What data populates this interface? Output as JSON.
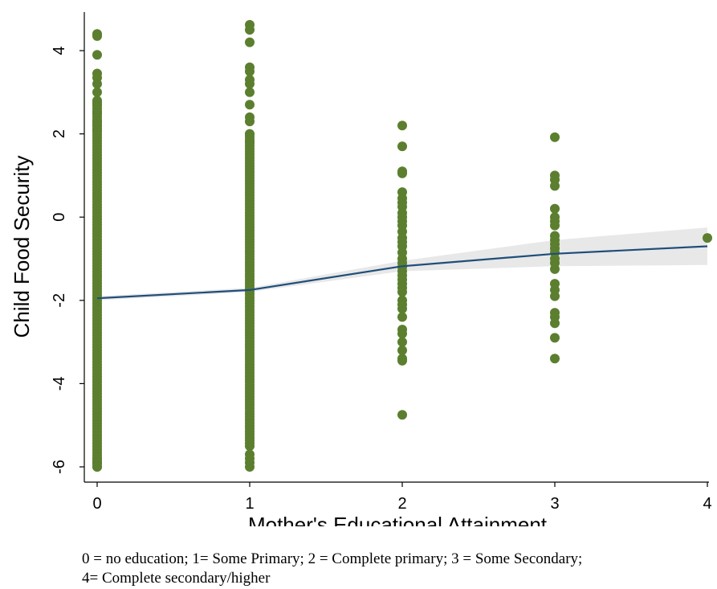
{
  "caption": {
    "line1": "0 = no education; 1= Some Primary; 2 = Complete primary; 3 = Some Secondary;",
    "line2": "4= Complete secondary/higher"
  },
  "chart_data": {
    "type": "scatter",
    "title": "",
    "xlabel": "Mother's Educational Attainment",
    "ylabel": "Child Food Security",
    "xlim": [
      -0.08,
      4.0
    ],
    "ylim": [
      -6.3,
      4.85
    ],
    "x_ticks": [
      0,
      1,
      2,
      3,
      4
    ],
    "y_ticks": [
      -6,
      -4,
      -2,
      0,
      2,
      4
    ],
    "grid": false,
    "legend": "none",
    "colors": {
      "points": "#5b7f2f",
      "fit_line": "#1f4e79",
      "ci_band": "#e8e8e8"
    },
    "series": [
      {
        "kind": "points",
        "groups": [
          {
            "x": 0,
            "dense_range": [
              -6.0,
              2.8
            ],
            "y": [
              4.4,
              4.35,
              3.9,
              3.45,
              3.35,
              3.2,
              3.0,
              2.8,
              2.7,
              2.5,
              2.3,
              2.2,
              2.1,
              -5.8,
              -5.9,
              -6.0
            ]
          },
          {
            "x": 1,
            "dense_range": [
              -5.5,
              2.0
            ],
            "y": [
              4.62,
              4.5,
              4.2,
              3.6,
              3.5,
              3.3,
              3.2,
              3.0,
              2.7,
              2.4,
              2.3,
              2.0,
              1.8,
              -5.7,
              -5.8,
              -5.9,
              -6.0
            ]
          },
          {
            "x": 2,
            "y": [
              2.2,
              1.7,
              1.1,
              1.05,
              0.6,
              0.45,
              0.35,
              0.25,
              0.1,
              0.0,
              -0.1,
              -0.2,
              -0.35,
              -0.5,
              -0.6,
              -0.7,
              -0.85,
              -1.0,
              -1.1,
              -1.2,
              -1.3,
              -1.4,
              -1.5,
              -1.6,
              -1.7,
              -1.8,
              -2.0,
              -2.1,
              -2.2,
              -2.4,
              -2.7,
              -2.8,
              -3.0,
              -3.2,
              -3.4,
              -3.45,
              -4.75
            ]
          },
          {
            "x": 3,
            "y": [
              1.92,
              1.0,
              0.9,
              0.75,
              0.2,
              0.0,
              -0.1,
              -0.2,
              -0.45,
              -0.55,
              -0.65,
              -0.75,
              -0.85,
              -1.0,
              -1.1,
              -1.25,
              -1.6,
              -1.75,
              -1.9,
              -2.3,
              -2.4,
              -2.55,
              -2.9,
              -3.4
            ]
          },
          {
            "x": 4,
            "y": [
              -0.5
            ]
          }
        ]
      },
      {
        "kind": "fit",
        "x": [
          0,
          1,
          2,
          3,
          4
        ],
        "y": [
          -1.95,
          -1.75,
          -1.18,
          -0.88,
          -0.7
        ],
        "ci_upper": [
          -1.9,
          -1.7,
          -1.05,
          -0.55,
          -0.25
        ],
        "ci_lower": [
          -2.0,
          -1.8,
          -1.3,
          -1.18,
          -1.15
        ]
      }
    ]
  }
}
